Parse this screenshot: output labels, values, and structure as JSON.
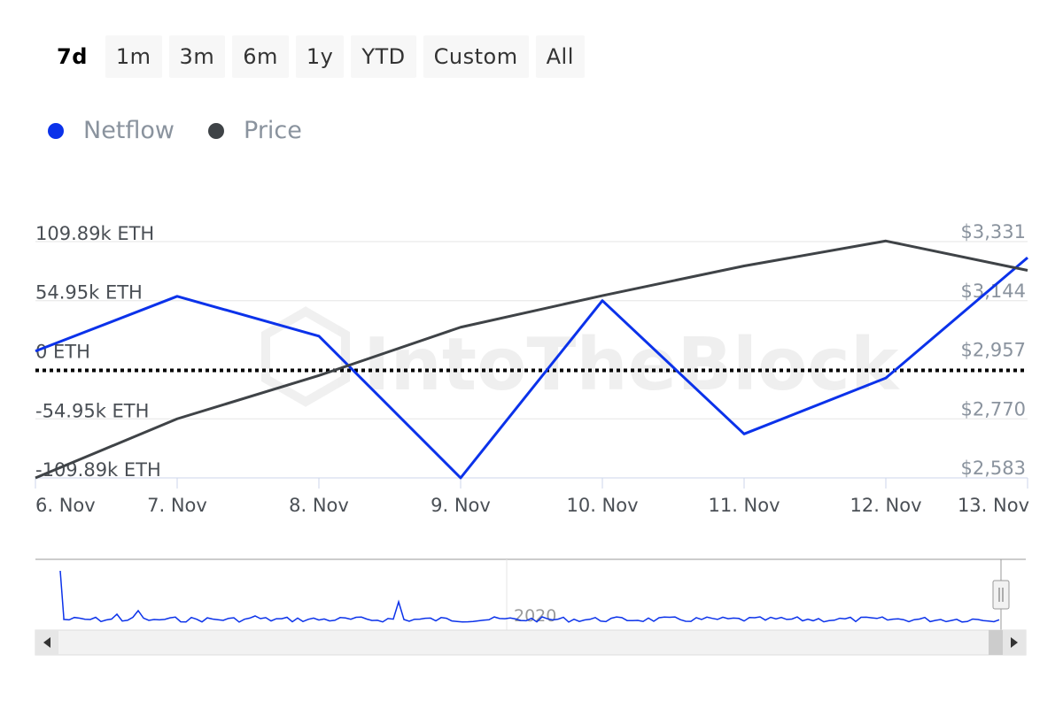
{
  "range_selector": {
    "buttons": [
      "7d",
      "1m",
      "3m",
      "6m",
      "1y",
      "YTD",
      "Custom",
      "All"
    ],
    "active": "7d"
  },
  "legend": {
    "items": [
      {
        "label": "Netflow",
        "color": "#0b32ea"
      },
      {
        "label": "Price",
        "color": "#3f4347"
      }
    ]
  },
  "navigator": {
    "year_label": "2020"
  },
  "chart_data": {
    "type": "line",
    "categories": [
      "6. Nov",
      "7. Nov",
      "8. Nov",
      "9. Nov",
      "10. Nov",
      "11. Nov",
      "12. Nov",
      "13. Nov"
    ],
    "series": [
      {
        "name": "Netflow",
        "axis": "left",
        "color": "#0b32ea",
        "values": [
          8000,
          59000,
          22000,
          -109890,
          55000,
          -69000,
          -17000,
          95000
        ]
      },
      {
        "name": "Price",
        "axis": "right",
        "color": "#3f4347",
        "values": [
          2583,
          2770,
          2907,
          3060,
          3160,
          3254,
          3333,
          3240
        ]
      }
    ],
    "left_axis": {
      "ticks": [
        109890,
        54950,
        0,
        -54950,
        -109890
      ],
      "tick_labels": [
        "109.89k ETH",
        "54.95k ETH",
        "0 ETH",
        "-54.95k ETH",
        "-109.89k ETH"
      ],
      "range": [
        -109890,
        109890
      ]
    },
    "right_axis": {
      "ticks": [
        3331,
        3144,
        2957,
        2770,
        2583
      ],
      "tick_labels": [
        "$3,331",
        "$3,144",
        "$2,957",
        "$2,770",
        "$2,583"
      ],
      "range": [
        2583,
        3331
      ]
    },
    "zero_line": "dotted",
    "grid": true,
    "legend_position": "top-left"
  }
}
